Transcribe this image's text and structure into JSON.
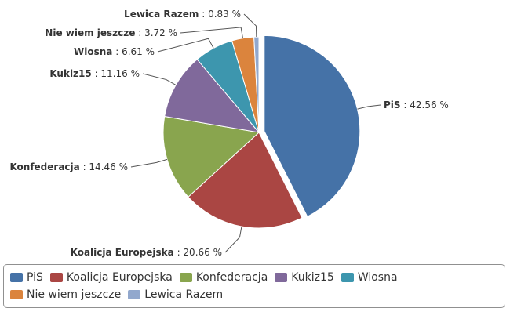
{
  "chart_data": {
    "type": "pie",
    "title": "",
    "unit": "%",
    "legend_position": "bottom",
    "slices": [
      {
        "name": "PiS",
        "value": 42.56,
        "color": "#4572A7",
        "label_value": "42.56 %"
      },
      {
        "name": "Koalicja Europejska",
        "value": 20.66,
        "color": "#AA4643",
        "label_value": "20.66 %"
      },
      {
        "name": "Konfederacja",
        "value": 14.46,
        "color": "#89A54E",
        "label_value": "14.46 %"
      },
      {
        "name": "Kukiz15",
        "value": 11.16,
        "color": "#80699B",
        "label_value": "11.16 %"
      },
      {
        "name": "Wiosna",
        "value": 6.61,
        "color": "#3D96AE",
        "label_value": "6.61 %"
      },
      {
        "name": "Nie wiem jeszcze",
        "value": 3.72,
        "color": "#DB843D",
        "label_value": "3.72 %"
      },
      {
        "name": "Lewica Razem",
        "value": 0.83,
        "color": "#92A8CD",
        "label_value": "0.83 %"
      }
    ],
    "separator": " : "
  }
}
